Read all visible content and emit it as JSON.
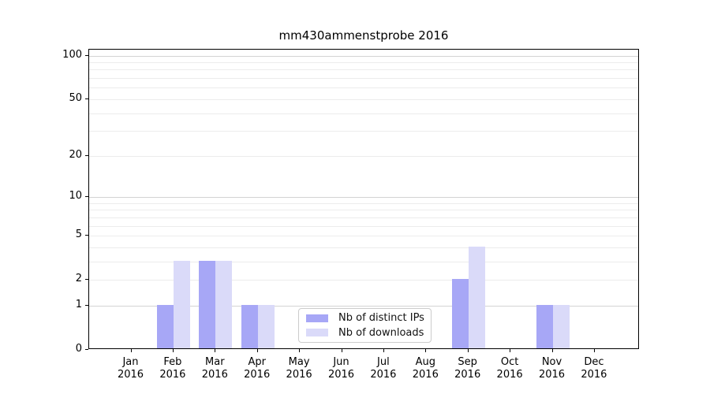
{
  "chart_data": {
    "type": "bar",
    "title": "mm430ammenstprobe 2016",
    "categories": [
      "Jan",
      "Feb",
      "Mar",
      "Apr",
      "May",
      "Jun",
      "Jul",
      "Aug",
      "Sep",
      "Oct",
      "Nov",
      "Dec"
    ],
    "year_label": "2016",
    "series": [
      {
        "name": "Nb of distinct IPs",
        "color": "#a7a7f6",
        "values": [
          0,
          1,
          3,
          1,
          0,
          0,
          0,
          0,
          2,
          0,
          1,
          0
        ]
      },
      {
        "name": "Nb of downloads",
        "color": "#dadaf9",
        "values": [
          0,
          3,
          3,
          1,
          0,
          0,
          0,
          0,
          4,
          0,
          1,
          0
        ]
      }
    ],
    "yscale": "log1p",
    "ylim": [
      0,
      110
    ],
    "yticks": [
      0,
      1,
      2,
      5,
      10,
      20,
      50,
      100
    ],
    "grid": "horizontal",
    "legend_position": "lower center",
    "axis_color": "#000000",
    "major_grid_color": "#d3d3d3",
    "minor_grid_color": "#ececec",
    "major_gridline_values": [
      1,
      10,
      100
    ],
    "minor_gridline_values": [
      2,
      3,
      4,
      5,
      6,
      7,
      8,
      9,
      20,
      30,
      40,
      50,
      60,
      70,
      80,
      90
    ]
  }
}
